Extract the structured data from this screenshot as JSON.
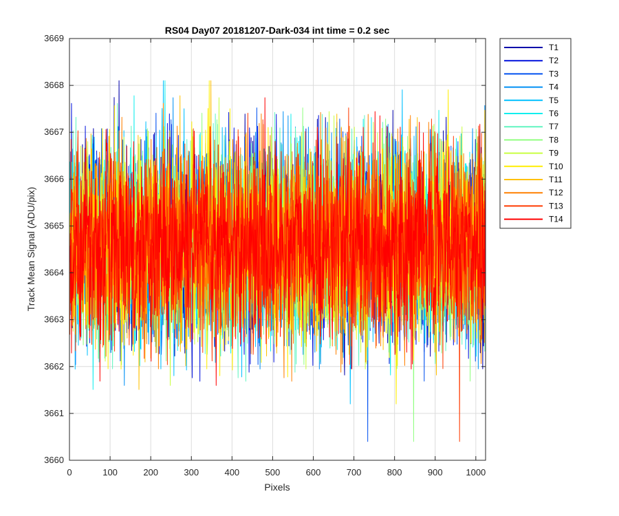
{
  "chart_data": {
    "type": "line",
    "title": "RS04 Day07 20181207-Dark-034 int time = 0.2 sec",
    "xlabel": "Pixels",
    "ylabel": "Track Mean Signal (ADU/pix)",
    "xlim": [
      0,
      1024
    ],
    "ylim": [
      3660,
      3669
    ],
    "xticks": [
      "0",
      "100",
      "200",
      "300",
      "400",
      "500",
      "600",
      "700",
      "800",
      "900",
      "1000"
    ],
    "yticks": [
      "3660",
      "3661",
      "3662",
      "3663",
      "3664",
      "3665",
      "3666",
      "3667",
      "3668",
      "3669"
    ],
    "grid": true,
    "legend_position": "outside-top-right",
    "noise_profile": {
      "n_points": 1024,
      "mean": 3664.6,
      "std": 1.0,
      "min_observed": 3660.4,
      "max_observed": 3668.1
    },
    "series": [
      {
        "name": "T1",
        "color": "#0000AA"
      },
      {
        "name": "T2",
        "color": "#0010DD"
      },
      {
        "name": "T3",
        "color": "#0050F0"
      },
      {
        "name": "T4",
        "color": "#0090F5"
      },
      {
        "name": "T5",
        "color": "#00C0FF"
      },
      {
        "name": "T6",
        "color": "#10EEEE"
      },
      {
        "name": "T7",
        "color": "#60F5C0"
      },
      {
        "name": "T8",
        "color": "#90FF80"
      },
      {
        "name": "T9",
        "color": "#C8FF40"
      },
      {
        "name": "T10",
        "color": "#FFEE00"
      },
      {
        "name": "T11",
        "color": "#FFC000"
      },
      {
        "name": "T12",
        "color": "#FF8000"
      },
      {
        "name": "T13",
        "color": "#FF3A00"
      },
      {
        "name": "T14",
        "color": "#FF0000"
      }
    ]
  }
}
